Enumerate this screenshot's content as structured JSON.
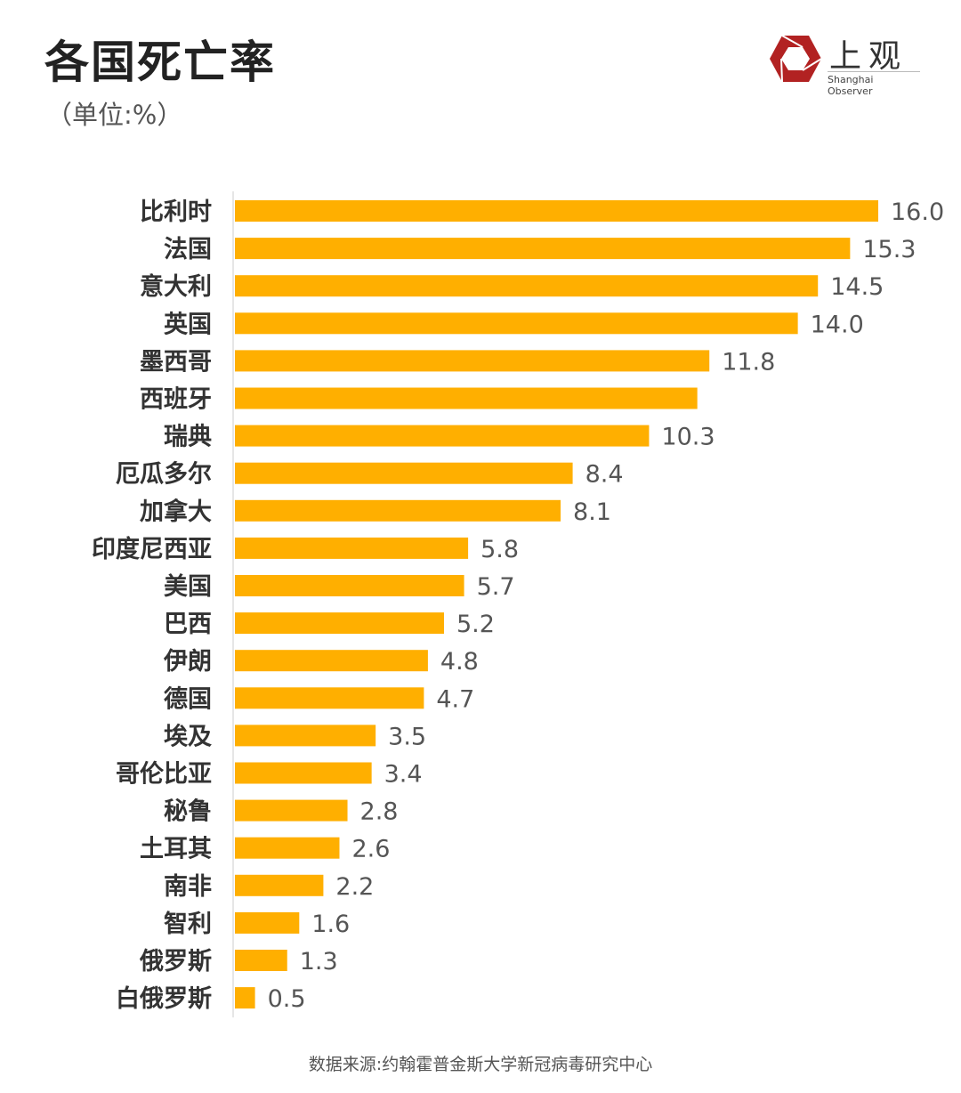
{
  "title": "各国死亡率",
  "unit_label": "（单位:%）",
  "logo": {
    "cn": "上观",
    "en": "Shanghai Observer",
    "color": "#B22222"
  },
  "source": "数据来源:约翰霍普金斯大学新冠病毒研究中心",
  "chart_data": {
    "type": "bar",
    "orientation": "horizontal",
    "categories": [
      "比利时",
      "法国",
      "意大利",
      "英国",
      "墨西哥",
      "西班牙",
      "瑞典",
      "厄瓜多尔",
      "加拿大",
      "印度尼西亚",
      "美国",
      "巴西",
      "伊朗",
      "德国",
      "埃及",
      "哥伦比亚",
      "秘鲁",
      "土耳其",
      "南非",
      "智利",
      "俄罗斯",
      "白俄罗斯"
    ],
    "values": [
      16.0,
      15.3,
      14.5,
      14.0,
      11.8,
      11.5,
      10.3,
      8.4,
      8.1,
      5.8,
      5.7,
      5.2,
      4.8,
      4.7,
      3.5,
      3.4,
      2.8,
      2.6,
      2.2,
      1.6,
      1.3,
      0.5
    ],
    "data_labels": [
      "16.0",
      "15.3",
      "14.5",
      "14.0",
      "11.8",
      "",
      "10.3",
      "8.4",
      "8.1",
      "5.8",
      "5.7",
      "5.2",
      "4.8",
      "4.7",
      "3.5",
      "3.4",
      "2.8",
      "2.6",
      "2.2",
      "1.6",
      "1.3",
      "0.5"
    ],
    "xlim": [
      0,
      16
    ],
    "bar_color": "#FFAF00",
    "grid": false
  }
}
